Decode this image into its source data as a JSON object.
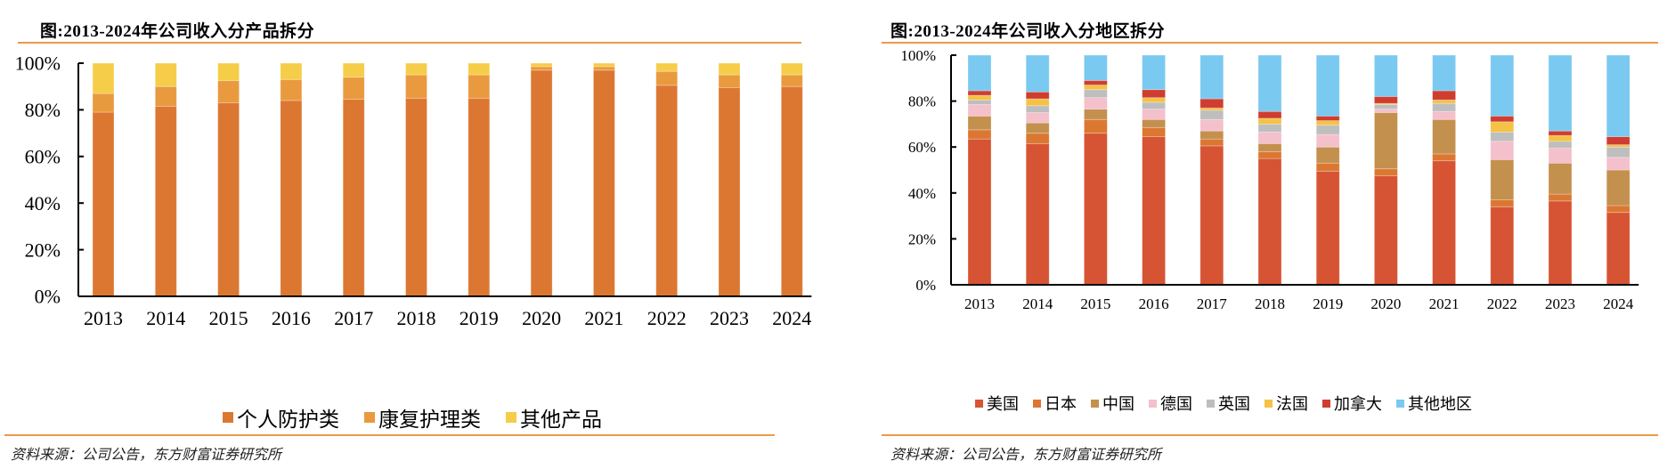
{
  "charts": [
    {
      "title": "图:2013-2024年公司收入分产品拆分",
      "source": "资料来源：公司公告，东方财富证券研究所"
    },
    {
      "title": "图:2013-2024年公司收入分地区拆分",
      "source": "资料来源：公司公告，东方财富证券研究所"
    }
  ],
  "chart_data": [
    {
      "type": "bar",
      "stacked": true,
      "title": "图:2013-2024年公司收入分产品拆分",
      "xlabel": "",
      "ylabel": "",
      "ylim": [
        0,
        100
      ],
      "yticks": [
        "0%",
        "20%",
        "40%",
        "60%",
        "80%",
        "100%"
      ],
      "grid": false,
      "legend_position": "bottom",
      "categories": [
        "2013",
        "2014",
        "2015",
        "2016",
        "2017",
        "2018",
        "2019",
        "2020",
        "2021",
        "2022",
        "2023",
        "2024"
      ],
      "series": [
        {
          "name": "个人防护类",
          "color": "#dc7732",
          "values": [
            79,
            81.5,
            83,
            84,
            84.5,
            85,
            85,
            97,
            97,
            90.5,
            89.5,
            90
          ]
        },
        {
          "name": "康复护理类",
          "color": "#e99a3e",
          "values": [
            8,
            8.5,
            9.5,
            9,
            9.5,
            10,
            10,
            1.5,
            1.5,
            6,
            5.5,
            5
          ]
        },
        {
          "name": "其他产品",
          "color": "#f6cd49",
          "values": [
            13,
            10,
            7.5,
            7,
            6,
            5,
            5,
            1.5,
            1.5,
            3.5,
            5,
            5
          ]
        }
      ]
    },
    {
      "type": "bar",
      "stacked": true,
      "title": "图:2013-2024年公司收入分地区拆分",
      "xlabel": "",
      "ylabel": "",
      "ylim": [
        0,
        100
      ],
      "yticks": [
        "0%",
        "20%",
        "40%",
        "60%",
        "80%",
        "100%"
      ],
      "grid": false,
      "legend_position": "bottom",
      "categories": [
        "2013",
        "2014",
        "2015",
        "2016",
        "2017",
        "2018",
        "2019",
        "2020",
        "2021",
        "2022",
        "2023",
        "2024"
      ],
      "series": [
        {
          "name": "美国",
          "color": "#d65433",
          "values": [
            63.5,
            61.5,
            66,
            64.5,
            60.5,
            55,
            49.5,
            47.5,
            54,
            34,
            36.5,
            31.5
          ]
        },
        {
          "name": "日本",
          "color": "#dc7732",
          "values": [
            4,
            4.5,
            6,
            4,
            3,
            3,
            3.5,
            3,
            3,
            3,
            3,
            3
          ]
        },
        {
          "name": "中国",
          "color": "#c4904e",
          "values": [
            6,
            4.5,
            4.5,
            3.5,
            3.5,
            3.5,
            7,
            24.5,
            15,
            17.5,
            13.5,
            15.5
          ]
        },
        {
          "name": "德国",
          "color": "#f4c0cb",
          "values": [
            5,
            4.5,
            5,
            4.5,
            5,
            5,
            5.5,
            1.5,
            3.5,
            8,
            6.5,
            5.5
          ]
        },
        {
          "name": "英国",
          "color": "#bebebe",
          "values": [
            2,
            3,
            3.5,
            3,
            4,
            3.5,
            4,
            2,
            3.5,
            4,
            3,
            4.5
          ]
        },
        {
          "name": "法国",
          "color": "#f4c245",
          "values": [
            2,
            3,
            2,
            2,
            1,
            2.5,
            2,
            0.5,
            1.5,
            4.5,
            2.5,
            1
          ]
        },
        {
          "name": "加拿大",
          "color": "#cf3d30",
          "values": [
            2,
            3,
            2,
            3.5,
            4,
            3,
            2,
            3,
            4,
            2.5,
            2,
            3.5
          ]
        },
        {
          "name": "其他地区",
          "color": "#7ac9f0",
          "values": [
            15.5,
            16,
            11,
            15,
            19,
            24.5,
            26.5,
            18,
            15.5,
            26.5,
            33,
            35.5
          ]
        }
      ]
    }
  ]
}
